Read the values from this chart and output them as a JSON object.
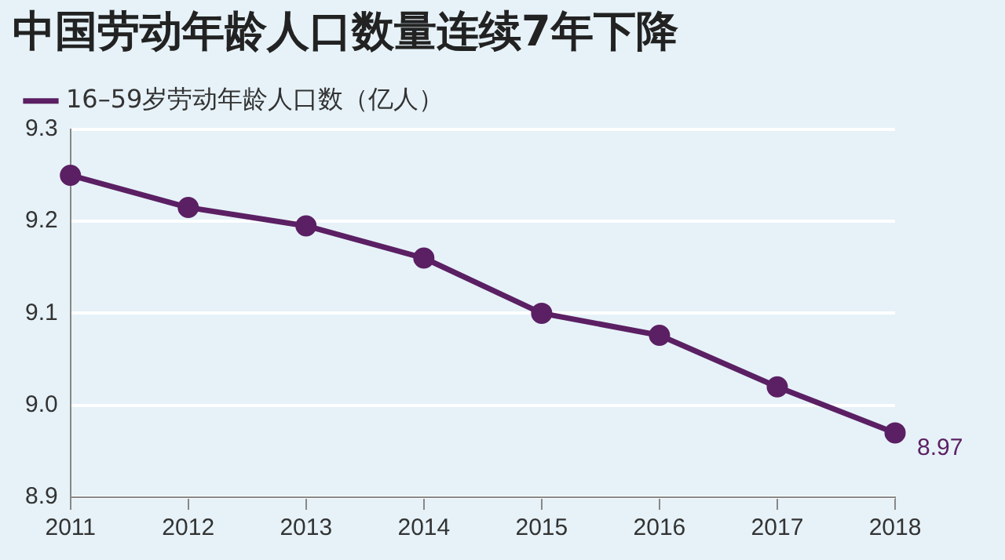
{
  "chart_data": {
    "type": "line",
    "title": "中国劳动年龄人口数量连续7年下降",
    "categories": [
      "2011",
      "2012",
      "2013",
      "2014",
      "2015",
      "2016",
      "2017",
      "2018"
    ],
    "series": [
      {
        "name": "16–59岁劳动年龄人口数（亿人）",
        "color": "#5b1f63",
        "values": [
          9.25,
          9.215,
          9.195,
          9.16,
          9.1,
          9.076,
          9.02,
          8.97
        ],
        "value_labels": [
          null,
          null,
          null,
          null,
          null,
          null,
          null,
          "8.97"
        ]
      }
    ],
    "ylim": [
      8.9,
      9.3
    ],
    "yticks": [
      8.9,
      {
        "value": 9,
        "label": "9.0"
      },
      9.1,
      9.2,
      9.3
    ],
    "grid": "y",
    "legend": "top left",
    "marker": "circle",
    "line_style": "solid"
  }
}
